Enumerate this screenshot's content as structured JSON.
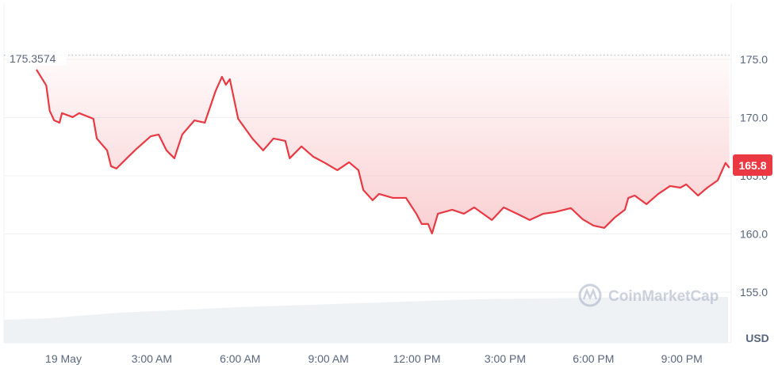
{
  "chart_data": {
    "type": "line",
    "title": "",
    "xlabel": "",
    "ylabel": "",
    "currency_label": "USD",
    "y_ticks": [
      "155.0",
      "160.0",
      "165.0",
      "170.0",
      "175.0"
    ],
    "ylim": [
      152.8,
      179.6
    ],
    "x_ticks": [
      "19 May",
      "3:00 AM",
      "6:00 AM",
      "9:00 AM",
      "12:00 PM",
      "3:00 PM",
      "6:00 PM",
      "9:00 PM"
    ],
    "reference_value": "175.3574",
    "current_price": "165.8",
    "watermark": "CoinMarketCap",
    "grid": "horizontal",
    "colors": {
      "line": "#ea3943",
      "reference": "#a6b0c3",
      "text": "#58667e",
      "volume": "#eff2f5"
    },
    "series": [
      {
        "points": [
          [
            "18 May 23:05",
            174.12
          ],
          [
            "18 May 23:25",
            172.76
          ],
          [
            "18 May 23:32",
            170.58
          ],
          [
            "18 May 23:41",
            169.76
          ],
          [
            "18 May 23:52",
            169.56
          ],
          [
            "18 May 23:57",
            170.38
          ],
          [
            "19 May 00:19",
            170.04
          ],
          [
            "19 May 00:32",
            170.38
          ],
          [
            "19 May 01:01",
            169.9
          ],
          [
            "19 May 01:08",
            168.2
          ],
          [
            "19 May 01:29",
            167.18
          ],
          [
            "19 May 01:37",
            165.82
          ],
          [
            "19 May 01:48",
            165.62
          ],
          [
            "19 May 02:09",
            166.5
          ],
          [
            "19 May 02:29",
            167.32
          ],
          [
            "19 May 02:58",
            168.4
          ],
          [
            "19 May 03:14",
            168.54
          ],
          [
            "19 May 03:30",
            167.18
          ],
          [
            "19 May 03:46",
            166.5
          ],
          [
            "19 May 04:02",
            168.54
          ],
          [
            "19 May 04:27",
            169.76
          ],
          [
            "19 May 04:48",
            169.56
          ],
          [
            "19 May 05:10",
            172.28
          ],
          [
            "19 May 05:23",
            173.5
          ],
          [
            "19 May 05:31",
            172.82
          ],
          [
            "19 May 05:39",
            173.3
          ],
          [
            "19 May 05:56",
            169.9
          ],
          [
            "19 May 06:25",
            168.2
          ],
          [
            "19 May 06:47",
            167.18
          ],
          [
            "19 May 07:08",
            168.2
          ],
          [
            "19 May 07:32",
            168.0
          ],
          [
            "19 May 07:41",
            166.5
          ],
          [
            "19 May 08:05",
            167.52
          ],
          [
            "19 May 08:29",
            166.64
          ],
          [
            "19 May 08:53",
            166.1
          ],
          [
            "19 May 09:18",
            165.48
          ],
          [
            "19 May 09:42",
            166.16
          ],
          [
            "19 May 10:01",
            165.48
          ],
          [
            "19 May 10:11",
            163.78
          ],
          [
            "19 May 10:30",
            162.9
          ],
          [
            "19 May 10:43",
            163.44
          ],
          [
            "19 May 11:11",
            163.1
          ],
          [
            "19 May 11:38",
            163.1
          ],
          [
            "19 May 11:59",
            161.74
          ],
          [
            "19 May 12:10",
            160.86
          ],
          [
            "19 May 12:23",
            160.86
          ],
          [
            "19 May 12:31",
            160.04
          ],
          [
            "19 May 12:43",
            161.74
          ],
          [
            "19 May 13:12",
            162.08
          ],
          [
            "19 May 13:36",
            161.74
          ],
          [
            "19 May 13:57",
            162.28
          ],
          [
            "19 May 14:33",
            161.2
          ],
          [
            "19 May 14:57",
            162.28
          ],
          [
            "19 May 15:24",
            161.74
          ],
          [
            "19 May 15:50",
            161.2
          ],
          [
            "19 May 16:18",
            161.74
          ],
          [
            "19 May 16:42",
            161.88
          ],
          [
            "19 May 17:14",
            162.22
          ],
          [
            "19 May 17:38",
            161.26
          ],
          [
            "19 May 18:00",
            160.72
          ],
          [
            "19 May 18:22",
            160.52
          ],
          [
            "19 May 18:43",
            161.4
          ],
          [
            "19 May 19:04",
            162.08
          ],
          [
            "19 May 19:11",
            163.1
          ],
          [
            "19 May 19:24",
            163.3
          ],
          [
            "19 May 19:48",
            162.56
          ],
          [
            "19 May 20:12",
            163.44
          ],
          [
            "19 May 20:36",
            164.12
          ],
          [
            "19 May 20:57",
            163.98
          ],
          [
            "19 May 21:09",
            164.26
          ],
          [
            "19 May 21:33",
            163.3
          ],
          [
            "19 May 21:52",
            163.98
          ],
          [
            "19 May 22:13",
            164.6
          ],
          [
            "19 May 22:29",
            166.1
          ],
          [
            "19 May 22:37",
            165.68
          ]
        ]
      }
    ]
  }
}
